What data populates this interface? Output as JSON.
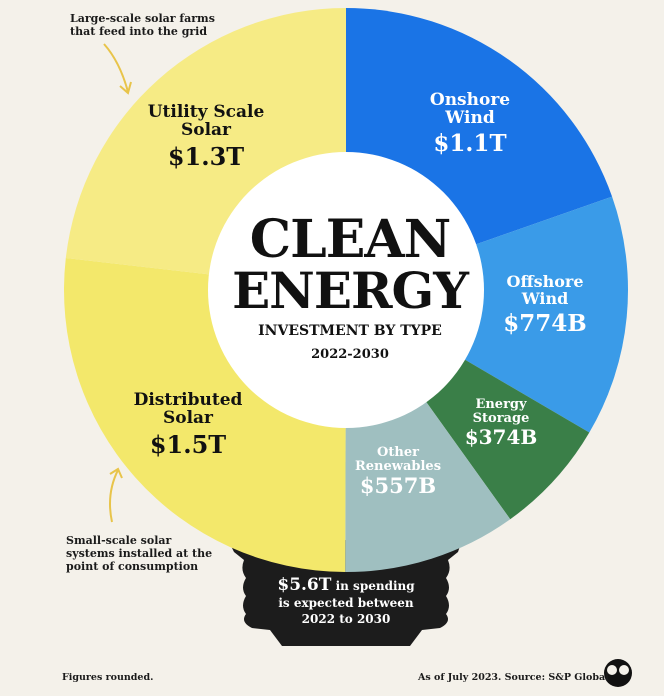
{
  "chart_data": {
    "type": "pie",
    "title_line1": "CLEAN",
    "title_line2": "ENERGY",
    "subtitle": "INVESTMENT BY TYPE",
    "years": "2022-2030",
    "unit": "USD",
    "slices": [
      {
        "key": "onshore",
        "name_line1": "Onshore",
        "name_line2": "Wind",
        "value": 1.1,
        "display": "$1.1T",
        "color": "#1a74e6",
        "text_color": "#ffffff"
      },
      {
        "key": "offshore",
        "name_line1": "Offshore",
        "name_line2": "Wind",
        "value": 0.774,
        "display": "$774B",
        "color": "#3a9be8",
        "text_color": "#ffffff"
      },
      {
        "key": "storage",
        "name_line1": "Energy",
        "name_line2": "Storage",
        "value": 0.374,
        "display": "$374B",
        "color": "#3a7f48",
        "text_color": "#ffffff"
      },
      {
        "key": "other",
        "name_line1": "Other",
        "name_line2": "Renewables",
        "value": 0.557,
        "display": "$557B",
        "color": "#9fbfc0",
        "text_color": "#ffffff"
      },
      {
        "key": "distributed",
        "name_line1": "Distributed",
        "name_line2": "Solar",
        "value": 1.5,
        "display": "$1.5T",
        "color": "#f3e86b",
        "text_color": "#111111"
      },
      {
        "key": "utility",
        "name_line1": "Utility Scale",
        "name_line2": "Solar",
        "value": 1.3,
        "display": "$1.3T",
        "color": "#f6eb85",
        "text_color": "#111111"
      }
    ]
  },
  "annotations": {
    "utility": [
      "Large-scale solar farms",
      "that feed into the grid"
    ],
    "distributed": [
      "Small-scale solar",
      "systems installed at the",
      "point of consumption"
    ]
  },
  "bulb": {
    "amount": "$5.6T",
    "line1_rest": " in spending",
    "line2": "is expected between",
    "line3": "2022 to 2030",
    "color": "#1c1c1c"
  },
  "footer": {
    "left": "Figures rounded.",
    "right": "As of July 2023. Source: S&P Global"
  }
}
